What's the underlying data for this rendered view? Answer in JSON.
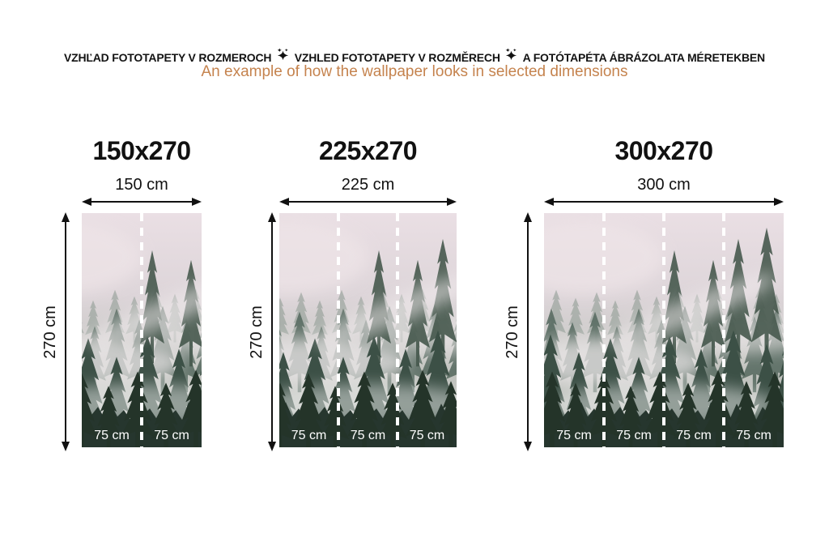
{
  "header": {
    "title_parts": [
      "VZHĽAD FOTOTAPETY V ROZMEROCH",
      "VZHLED FOTOTAPETY V ROZMĚRECH",
      "A FOTÓTAPÉTA ÁBRÁZOLATA MÉRETEKBEN"
    ],
    "separator_icon": "sparkle-icon",
    "subtitle": "An example of how the wallpaper looks in selected dimensions"
  },
  "colors": {
    "subtitle_text": "#c5834e",
    "measure_lines": "#111111",
    "segment_text": "#ffffff",
    "fog_top": "#eadfe4",
    "forest_dark": "#26362e"
  },
  "panels": [
    {
      "title": "150x270",
      "width_label": "150 cm",
      "height_label": "270 cm",
      "segments": [
        "75 cm",
        "75 cm"
      ]
    },
    {
      "title": "225x270",
      "width_label": "225 cm",
      "height_label": "270 cm",
      "segments": [
        "75 cm",
        "75 cm",
        "75 cm"
      ]
    },
    {
      "title": "300x270",
      "width_label": "300 cm",
      "height_label": "270 cm",
      "segments": [
        "75 cm",
        "75 cm",
        "75 cm",
        "75 cm"
      ]
    }
  ]
}
